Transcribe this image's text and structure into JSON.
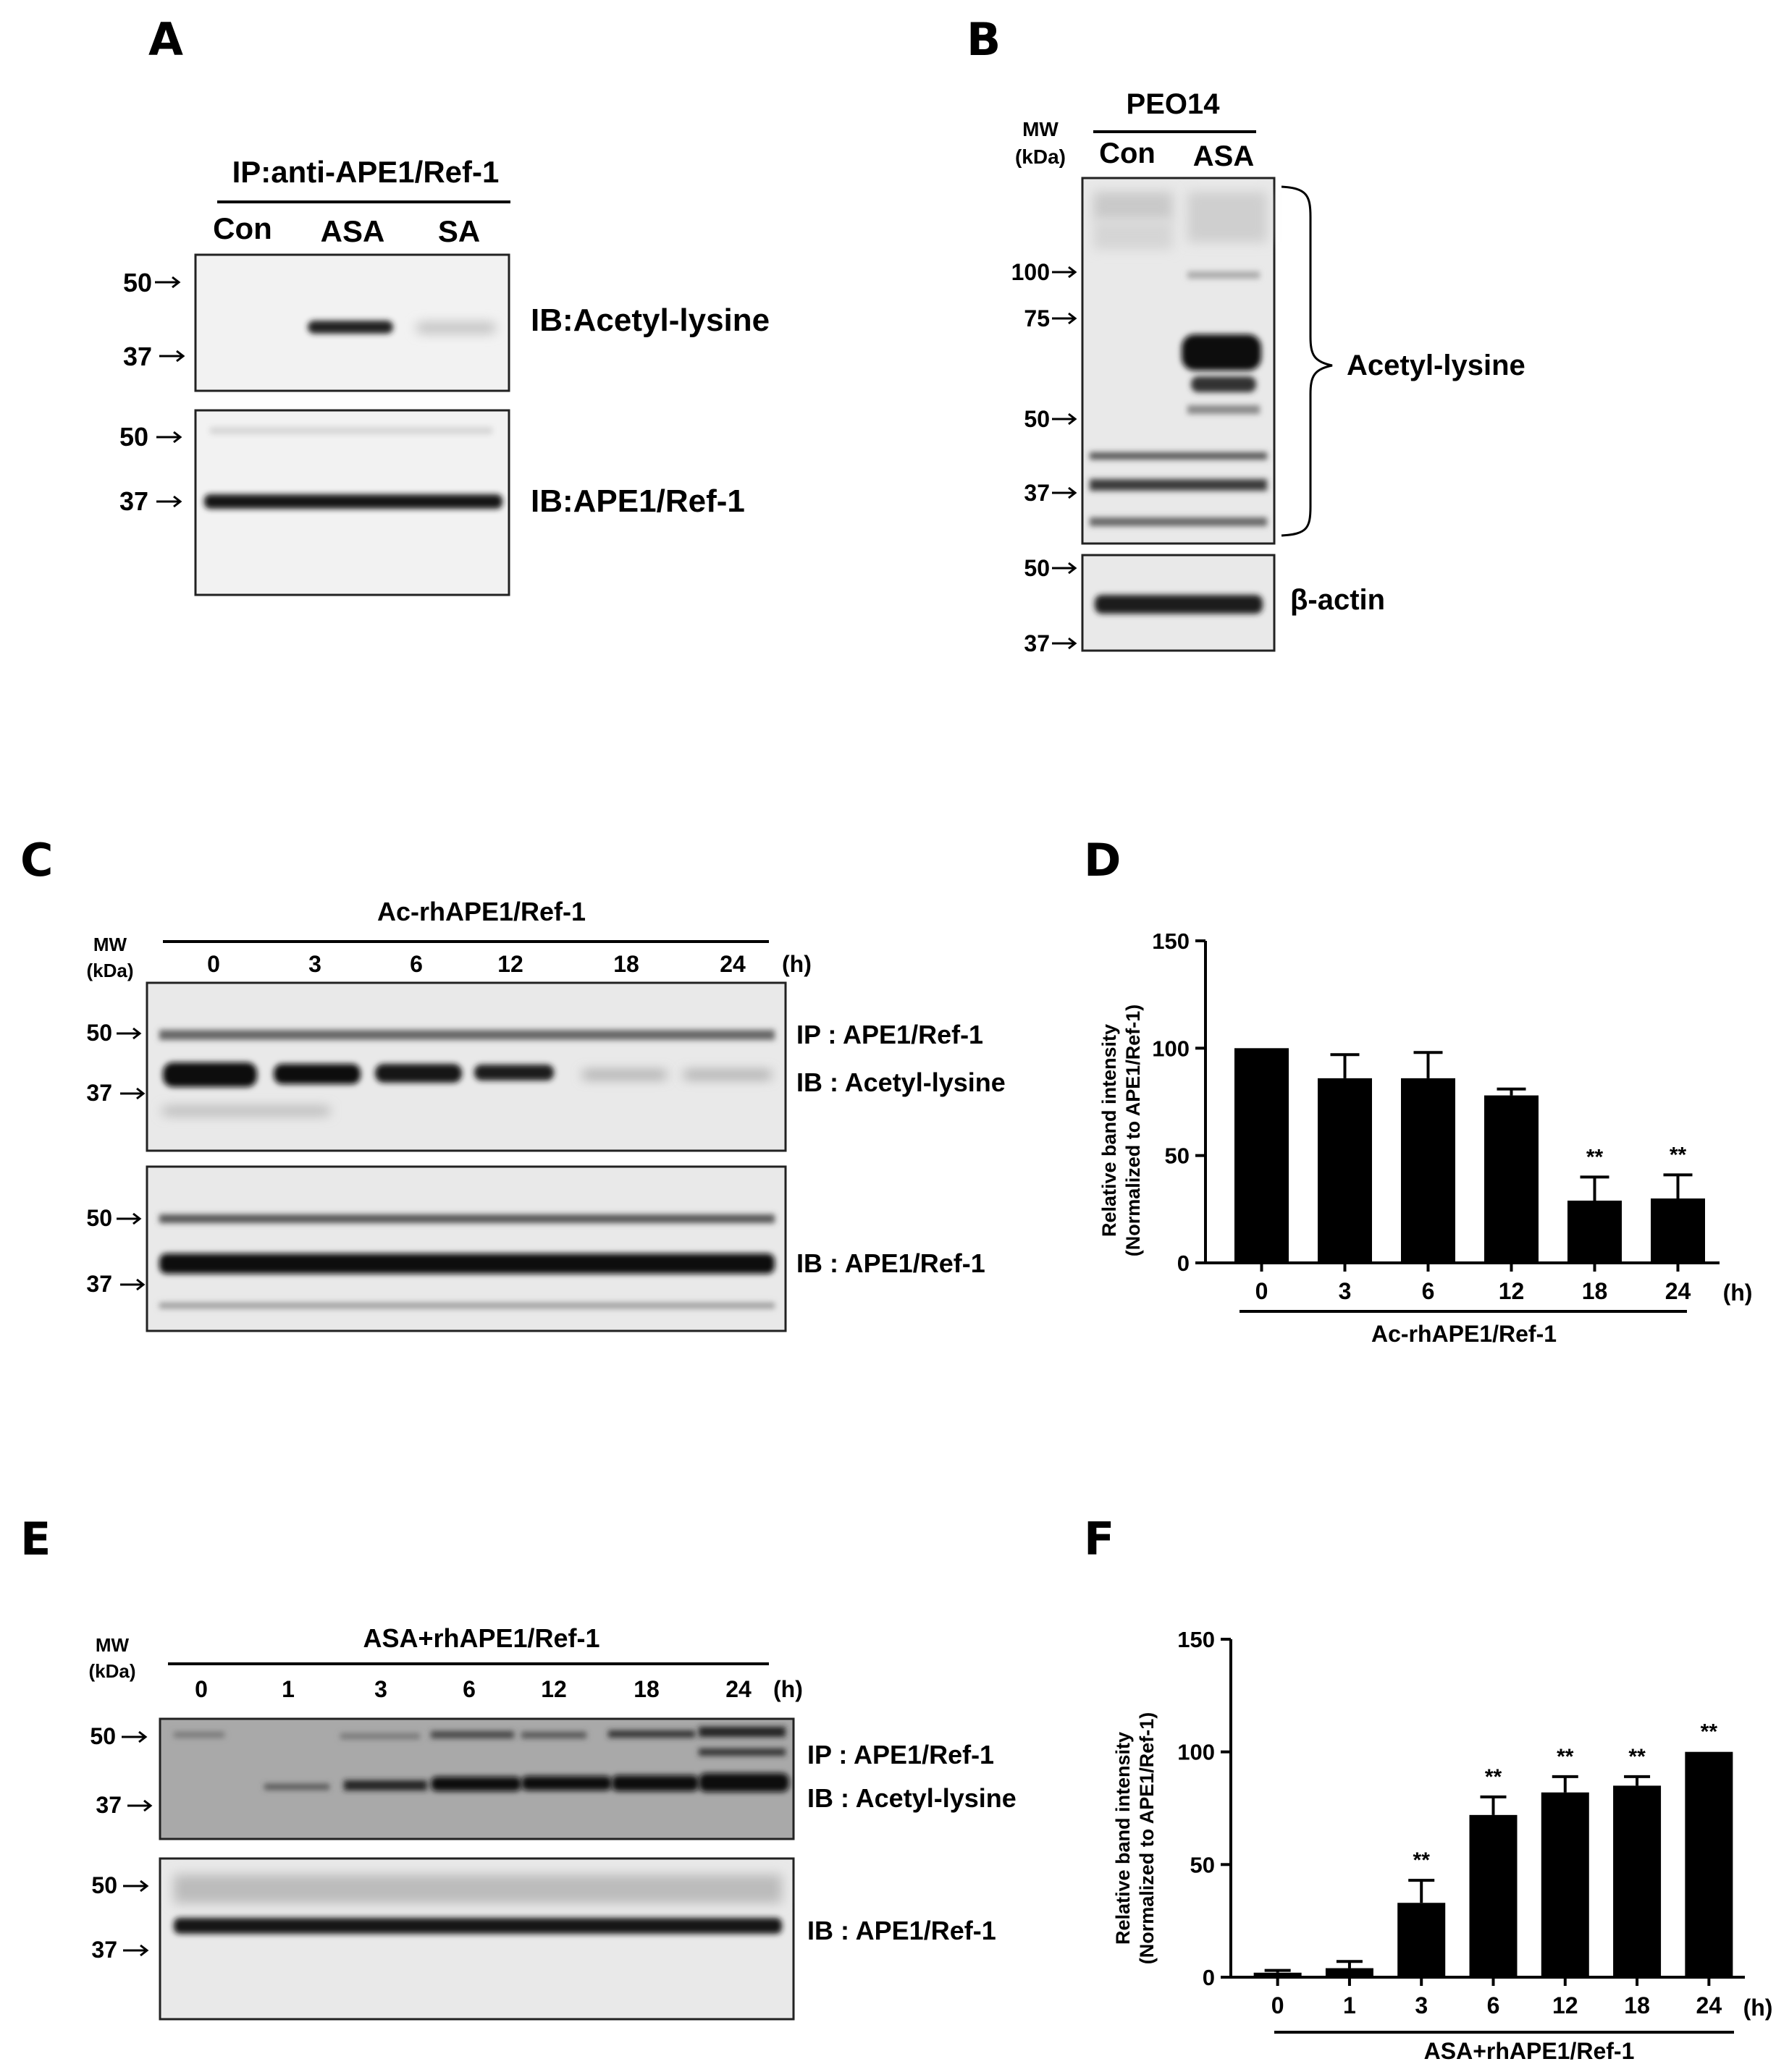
{
  "panels": {
    "A": {
      "letter": "A",
      "header": "IP:anti-APE1/Ref-1",
      "lanes": [
        "Con",
        "ASA",
        "SA"
      ],
      "top_markers": [
        "50",
        "37"
      ],
      "bottom_markers": [
        "50",
        "37"
      ],
      "top_label": "IB:Acetyl-lysine",
      "bottom_label": "IB:APE1/Ref-1"
    },
    "B": {
      "letter": "B",
      "cell_line": "PEO14",
      "mw_line1": "MW",
      "mw_line2": "(kDa)",
      "lanes": [
        "Con",
        "ASA"
      ],
      "top_markers": [
        "100",
        "75",
        "50",
        "37"
      ],
      "bottom_markers": [
        "50",
        "37"
      ],
      "top_label": "Acetyl-lysine",
      "bottom_label": "β-actin"
    },
    "C": {
      "letter": "C",
      "header": "Ac-rhAPE1/Ref-1",
      "mw_line1": "MW",
      "mw_line2": "(kDa)",
      "lanes": [
        "0",
        "3",
        "6",
        "12",
        "18",
        "24"
      ],
      "unit": "(h)",
      "top_markers": [
        "50",
        "37"
      ],
      "bottom_markers": [
        "50",
        "37"
      ],
      "top_label_1": "IP : APE1/Ref-1",
      "top_label_2": "IB : Acetyl-lysine",
      "bottom_label": "IB : APE1/Ref-1"
    },
    "E": {
      "letter": "E",
      "header": "ASA+rhAPE1/Ref-1",
      "mw_line1": "MW",
      "mw_line2": "(kDa)",
      "lanes": [
        "0",
        "1",
        "3",
        "6",
        "12",
        "18",
        "24"
      ],
      "unit": "(h)",
      "top_markers": [
        "50",
        "37"
      ],
      "bottom_markers": [
        "50",
        "37"
      ],
      "top_label_1": "IP : APE1/Ref-1",
      "top_label_2": "IB : Acetyl-lysine",
      "bottom_label": "IB : APE1/Ref-1"
    }
  },
  "chart_data": [
    {
      "panel": "D",
      "letter": "D",
      "type": "bar",
      "categories": [
        "0",
        "3",
        "6",
        "12",
        "18",
        "24"
      ],
      "values": [
        100,
        86,
        86,
        78,
        29,
        30
      ],
      "errors": [
        0,
        11,
        12,
        3,
        11,
        11
      ],
      "significance": [
        "",
        "",
        "",
        "",
        "**",
        "**"
      ],
      "ylabel_line1": "Relative band intensity",
      "ylabel_line2": "(Normalized to APE1/Ref-1)",
      "x_unit": "(h)",
      "x_group_label": "Ac-rhAPE1/Ref-1",
      "yticks": [
        "0",
        "50",
        "100",
        "150"
      ],
      "ylim": [
        0,
        150
      ],
      "bar_color": "#000000"
    },
    {
      "panel": "F",
      "letter": "F",
      "type": "bar",
      "categories": [
        "0",
        "1",
        "3",
        "6",
        "12",
        "18",
        "24"
      ],
      "values": [
        2,
        4,
        33,
        72,
        82,
        85,
        100
      ],
      "errors": [
        1,
        3,
        10,
        8,
        7,
        4,
        0
      ],
      "significance": [
        "",
        "",
        "**",
        "**",
        "**",
        "**",
        "**"
      ],
      "ylabel_line1": "Relative band intensity",
      "ylabel_line2": "(Normalized to APE1/Ref-1)",
      "x_unit": "(h)",
      "x_group_label": "ASA+rhAPE1/Ref-1",
      "yticks": [
        "0",
        "50",
        "100",
        "150"
      ],
      "ylim": [
        0,
        150
      ],
      "bar_color": "#000000"
    }
  ]
}
